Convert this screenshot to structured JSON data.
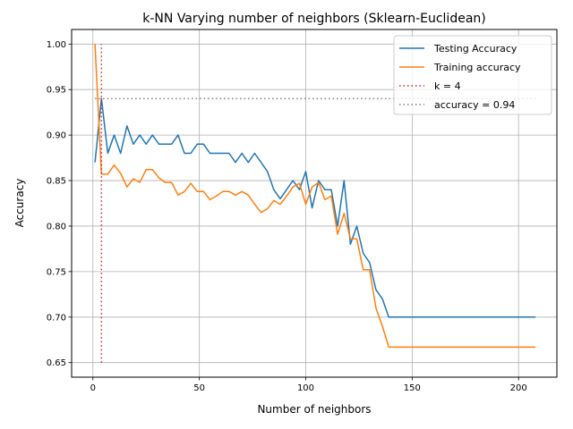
{
  "chart_data": {
    "type": "line",
    "title": "k-NN Varying number of neighbors (Sklearn-Euclidean)",
    "xlabel": "Number of neighbors",
    "ylabel": "Accuracy",
    "xlim": [
      -10,
      218
    ],
    "ylim": [
      0.634,
      1.016
    ],
    "xticks": [
      0,
      50,
      100,
      150,
      200
    ],
    "xtick_labels": [
      "0",
      "50",
      "100",
      "150",
      "200"
    ],
    "yticks": [
      0.65,
      0.7,
      0.75,
      0.8,
      0.85,
      0.9,
      0.95,
      1.0
    ],
    "ytick_labels": [
      "0.65",
      "0.70",
      "0.75",
      "0.80",
      "0.85",
      "0.90",
      "0.95",
      "1.00"
    ],
    "grid": true,
    "legend_position": "top-right",
    "series": [
      {
        "name": "Testing Accuracy",
        "color": "#1f77b4",
        "style": "solid",
        "x": [
          1,
          4,
          7,
          10,
          13,
          16,
          19,
          22,
          25,
          28,
          31,
          34,
          37,
          40,
          43,
          46,
          49,
          52,
          55,
          58,
          61,
          64,
          67,
          70,
          73,
          76,
          79,
          82,
          85,
          88,
          91,
          94,
          97,
          100,
          103,
          106,
          109,
          112,
          115,
          118,
          121,
          124,
          127,
          130,
          133,
          136,
          139,
          142,
          145,
          150,
          160,
          170,
          180,
          190,
          200,
          208
        ],
        "y": [
          0.87,
          0.94,
          0.88,
          0.9,
          0.88,
          0.91,
          0.89,
          0.9,
          0.89,
          0.9,
          0.89,
          0.89,
          0.89,
          0.9,
          0.88,
          0.88,
          0.89,
          0.89,
          0.88,
          0.88,
          0.88,
          0.88,
          0.87,
          0.88,
          0.87,
          0.88,
          0.87,
          0.86,
          0.84,
          0.83,
          0.84,
          0.85,
          0.84,
          0.86,
          0.82,
          0.85,
          0.84,
          0.84,
          0.8,
          0.85,
          0.78,
          0.8,
          0.77,
          0.76,
          0.73,
          0.72,
          0.7,
          0.7,
          0.7,
          0.7,
          0.7,
          0.7,
          0.7,
          0.7,
          0.7,
          0.7
        ]
      },
      {
        "name": "Training accuracy",
        "color": "#ff7f0e",
        "style": "solid",
        "x": [
          1,
          4,
          7,
          10,
          13,
          16,
          19,
          22,
          25,
          28,
          31,
          34,
          37,
          40,
          43,
          46,
          49,
          52,
          55,
          58,
          61,
          64,
          67,
          70,
          73,
          76,
          79,
          82,
          85,
          88,
          91,
          94,
          97,
          100,
          103,
          106,
          109,
          112,
          115,
          118,
          121,
          124,
          127,
          130,
          133,
          136,
          139,
          142,
          145,
          150,
          160,
          170,
          180,
          190,
          200,
          208
        ],
        "y": [
          1.0,
          0.857,
          0.857,
          0.867,
          0.858,
          0.843,
          0.852,
          0.848,
          0.862,
          0.862,
          0.853,
          0.848,
          0.848,
          0.834,
          0.838,
          0.847,
          0.838,
          0.838,
          0.829,
          0.833,
          0.838,
          0.838,
          0.834,
          0.838,
          0.834,
          0.824,
          0.815,
          0.819,
          0.828,
          0.824,
          0.833,
          0.843,
          0.847,
          0.824,
          0.843,
          0.848,
          0.829,
          0.833,
          0.791,
          0.814,
          0.786,
          0.786,
          0.752,
          0.752,
          0.71,
          0.69,
          0.667,
          0.667,
          0.667,
          0.667,
          0.667,
          0.667,
          0.667,
          0.667,
          0.667,
          0.667
        ]
      },
      {
        "name": "k = 4",
        "color": "#d62728",
        "style": "dotted",
        "x": [
          4,
          4
        ],
        "y": [
          0.65,
          1.0
        ]
      },
      {
        "name": "accuracy = 0.94",
        "color": "#7f7f7f",
        "style": "dotted",
        "x": [
          1,
          208
        ],
        "y": [
          0.94,
          0.94
        ]
      }
    ]
  }
}
